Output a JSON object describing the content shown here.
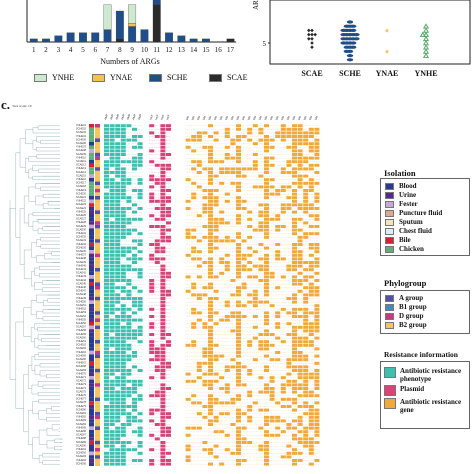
{
  "panel_label": "c.",
  "tree_scale": "Tree scale: 10",
  "chart_data": [
    {
      "type": "bar",
      "stacked": true,
      "xlabel": "Numbers of ARGs",
      "categories": [
        "1",
        "2",
        "3",
        "4",
        "5",
        "6",
        "7",
        "8",
        "9",
        "10",
        "11",
        "12",
        "13",
        "14",
        "15",
        "16",
        "17"
      ],
      "ylim_top_visible": 14,
      "series": [
        {
          "name": "SCAE",
          "color": "#2b2b2b",
          "values": [
            0,
            0,
            0,
            0,
            0,
            0,
            0,
            1,
            0,
            0,
            12,
            0,
            0,
            0,
            0,
            0,
            1
          ]
        },
        {
          "name": "SCHE",
          "color": "#1f4e8a",
          "values": [
            1,
            1,
            2,
            3,
            3,
            3,
            4,
            9,
            5,
            4,
            3,
            3,
            2,
            1,
            1,
            0,
            0
          ]
        },
        {
          "name": "YNAE",
          "color": "#f3c34d",
          "values": [
            0,
            0,
            0,
            0,
            0,
            0,
            0,
            0,
            1,
            0,
            0,
            0,
            0,
            0,
            0,
            0,
            0
          ]
        },
        {
          "name": "YNHE",
          "color": "#cfe9cf",
          "values": [
            0,
            0,
            0,
            0,
            0,
            0,
            8,
            0,
            6,
            0,
            0,
            0,
            0,
            0,
            0,
            0,
            0
          ]
        }
      ],
      "legend": [
        "YNHE",
        "YNAE",
        "SCHE",
        "SCAE"
      ],
      "legend_placement": "bottom"
    },
    {
      "type": "scatter",
      "categories": [
        "SCAE",
        "SCHE",
        "YNAE",
        "YNHE"
      ],
      "ylabel": "ARGs",
      "y_tick_visible": [
        "5"
      ],
      "markers": [
        "diamond",
        "ellipse",
        "star",
        "triangle"
      ],
      "colors": [
        "#2b2b2b",
        "#1f4e8a",
        "#f3c34d",
        "#5ba56b"
      ],
      "points": {
        "SCAE": [
          8,
          8,
          7,
          7,
          7,
          6,
          6,
          5,
          4
        ],
        "SCHE": [
          10,
          9,
          9,
          9,
          8,
          8,
          8,
          8,
          7,
          7,
          7,
          7,
          7,
          6,
          6,
          6,
          6,
          6,
          5,
          5,
          5,
          5,
          4,
          4,
          4,
          3,
          3,
          2,
          1
        ],
        "YNAE": [
          8,
          3
        ],
        "YNHE": [
          9,
          8,
          7,
          7,
          6,
          5,
          4,
          3,
          2
        ]
      }
    },
    {
      "type": "heatmap",
      "title": "",
      "row_label_prefix": [
        "YNHE",
        "SCHE",
        "SCAE"
      ],
      "legend_sections": [
        {
          "title": "Isolation",
          "items": [
            {
              "label": "Blood",
              "color": "#283b8f"
            },
            {
              "label": "Urine",
              "color": "#5b2a86"
            },
            {
              "label": "Fester",
              "color": "#c9a7d8"
            },
            {
              "label": "Puncture fluid",
              "color": "#e0a98f"
            },
            {
              "label": "Sputum",
              "color": "#f4e5b6"
            },
            {
              "label": "Chest fluid",
              "color": "#d9eef5"
            },
            {
              "label": "Bile",
              "color": "#d4232f"
            },
            {
              "label": "Chicken",
              "color": "#5fae7c"
            }
          ]
        },
        {
          "title": "Phylogroup",
          "items": [
            {
              "label": "A group",
              "color": "#5050a8"
            },
            {
              "label": "B1 group",
              "color": "#3a8fbf"
            },
            {
              "label": "D group",
              "color": "#c23b85"
            },
            {
              "label": "B2 group",
              "color": "#f4c55c"
            }
          ]
        },
        {
          "title": "Resistance information",
          "items": [
            {
              "label": "Antibiotic resistance phenotype",
              "color": "#3fbfb0"
            },
            {
              "label": "Plasmid",
              "color": "#d9437a"
            },
            {
              "label": "Antibiotic resistance gene",
              "color": "#f2a93b"
            }
          ]
        }
      ]
    }
  ]
}
